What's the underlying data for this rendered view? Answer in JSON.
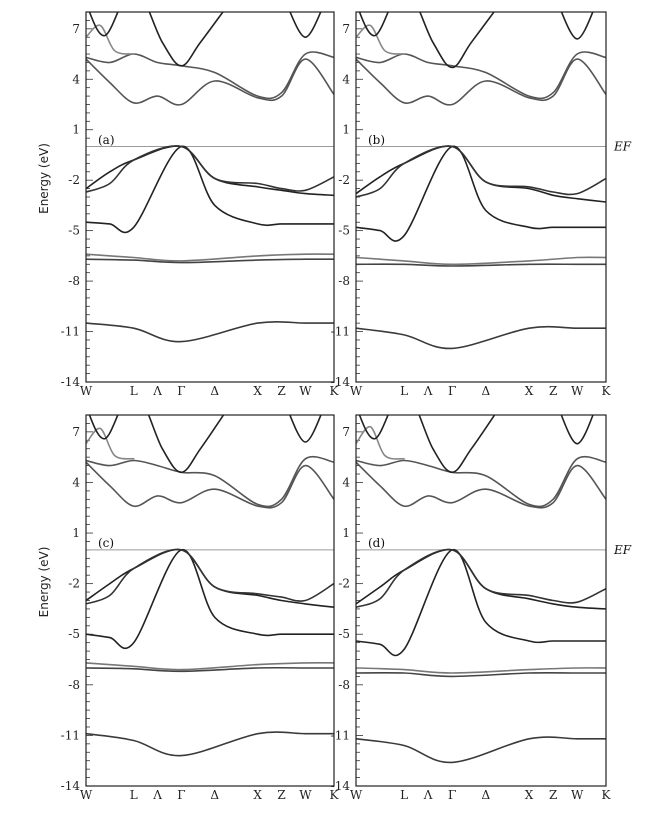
{
  "chart_data": [
    {
      "type": "line",
      "panel_label": "(a)",
      "ylabel": "Energy (eV)",
      "ylim": [
        -14,
        8
      ],
      "yticks": [
        7,
        4,
        1,
        -2,
        -5,
        -8,
        -11,
        -14
      ],
      "xticks": [
        "W",
        "L",
        "Λ",
        "Γ",
        "Δ",
        "X",
        "Z",
        "W",
        "K"
      ],
      "xtick_positions": [
        0,
        1,
        1.5,
        2,
        2.7,
        3.6,
        4.1,
        4.6,
        5.2
      ],
      "fermi_level": 0,
      "fermi_label": "",
      "series": [
        {
          "x": [
            0,
            1,
            2,
            3.6,
            4.6,
            5.2
          ],
          "y": [
            -10.5,
            -10.8,
            -11.6,
            -10.5,
            -10.5,
            -10.5
          ],
          "color": "#3a3a3a"
        },
        {
          "x": [
            0,
            1,
            2,
            3.6,
            4.6,
            5.2
          ],
          "y": [
            -6.7,
            -6.75,
            -6.9,
            -6.75,
            -6.7,
            -6.7
          ],
          "color": "#444444"
        },
        {
          "x": [
            0,
            1,
            2,
            3.6,
            4.6,
            5.2
          ],
          "y": [
            -6.4,
            -6.6,
            -6.8,
            -6.5,
            -6.4,
            -6.4
          ],
          "color": "#777777"
        },
        {
          "x": [
            0,
            0.5,
            1,
            2,
            2.7,
            3.6,
            4.1,
            4.6,
            5.2
          ],
          "y": [
            -4.5,
            -4.6,
            -4.8,
            0,
            -3.5,
            -4.6,
            -4.6,
            -4.6,
            -4.6
          ],
          "color": "#222222"
        },
        {
          "x": [
            0,
            0.5,
            1,
            2,
            2.7,
            3.6,
            4.1,
            4.6,
            5.2
          ],
          "y": [
            -2.5,
            -1.5,
            -0.8,
            0,
            -1.9,
            -2.4,
            -2.6,
            -2.8,
            -2.9
          ],
          "color": "#222222"
        },
        {
          "x": [
            0,
            0.5,
            1,
            2,
            2.7,
            3.6,
            4.1,
            4.6,
            5.2
          ],
          "y": [
            -2.7,
            -2.2,
            -0.8,
            0,
            -1.9,
            -2.2,
            -2.5,
            -2.6,
            -1.8
          ],
          "color": "#333333"
        },
        {
          "x": [
            0,
            0.5,
            1,
            1.5,
            2,
            2.7,
            3.6,
            4.1,
            4.6,
            5.2
          ],
          "y": [
            5.2,
            3.8,
            2.6,
            3.0,
            2.5,
            3.9,
            2.9,
            3.0,
            5.2,
            3.1
          ],
          "color": "#555555"
        },
        {
          "x": [
            0,
            0.5,
            1,
            1.5,
            2,
            2.7,
            3.6,
            4.1,
            4.6,
            5.2
          ],
          "y": [
            5.3,
            5.0,
            5.5,
            5.0,
            4.8,
            4.4,
            3.0,
            3.2,
            5.5,
            5.3
          ],
          "color": "#555555"
        },
        {
          "x": [
            0,
            0.3,
            0.6,
            1
          ],
          "y": [
            6.5,
            7.2,
            5.7,
            5.5
          ],
          "color": "#888888"
        },
        {
          "x": [
            0,
            0.4,
            1,
            1.6,
            2,
            2.4,
            3.0
          ],
          "y": [
            8.5,
            6.6,
            9.5,
            6.2,
            4.8,
            6.2,
            8.5
          ],
          "color": "#222222"
        },
        {
          "x": [
            4.2,
            4.6,
            5.0
          ],
          "y": [
            8.5,
            6.5,
            8.5
          ],
          "color": "#222222"
        }
      ]
    },
    {
      "type": "line",
      "panel_label": "(b)",
      "ylabel": "",
      "ylim": [
        -14,
        8
      ],
      "yticks": [
        7,
        4,
        1,
        -2,
        -5,
        -8,
        -11,
        -14
      ],
      "xticks": [
        "W",
        "L",
        "Λ",
        "Γ",
        "Δ",
        "X",
        "Z",
        "W",
        "K"
      ],
      "xtick_positions": [
        0,
        1,
        1.5,
        2,
        2.7,
        3.6,
        4.1,
        4.6,
        5.2
      ],
      "fermi_level": 0,
      "fermi_label": "EF",
      "series": [
        {
          "x": [
            0,
            1,
            2,
            3.6,
            4.6,
            5.2
          ],
          "y": [
            -10.8,
            -11.2,
            -12.0,
            -10.8,
            -10.8,
            -10.8
          ],
          "color": "#3a3a3a"
        },
        {
          "x": [
            0,
            1,
            2,
            3.6,
            4.6,
            5.2
          ],
          "y": [
            -7.0,
            -7.0,
            -7.1,
            -7.0,
            -7.0,
            -7.0
          ],
          "color": "#444444"
        },
        {
          "x": [
            0,
            1,
            2,
            3.6,
            4.6,
            5.2
          ],
          "y": [
            -6.6,
            -6.8,
            -7.0,
            -6.8,
            -6.6,
            -6.6
          ],
          "color": "#777777"
        },
        {
          "x": [
            0,
            0.5,
            1,
            2,
            2.7,
            3.6,
            4.1,
            4.6,
            5.2
          ],
          "y": [
            -4.8,
            -5.0,
            -5.3,
            0,
            -3.8,
            -4.8,
            -4.8,
            -4.8,
            -4.8
          ],
          "color": "#222222"
        },
        {
          "x": [
            0,
            0.5,
            1,
            2,
            2.7,
            3.6,
            4.1,
            4.6,
            5.2
          ],
          "y": [
            -2.8,
            -1.8,
            -1.0,
            0,
            -2.1,
            -2.5,
            -2.9,
            -3.1,
            -3.3
          ],
          "color": "#222222"
        },
        {
          "x": [
            0,
            0.5,
            1,
            2,
            2.7,
            3.6,
            4.1,
            4.6,
            5.2
          ],
          "y": [
            -3.0,
            -2.5,
            -1.0,
            0,
            -2.1,
            -2.4,
            -2.7,
            -2.8,
            -1.9
          ],
          "color": "#333333"
        },
        {
          "x": [
            0,
            0.5,
            1,
            1.5,
            2,
            2.7,
            3.6,
            4.1,
            4.6,
            5.2
          ],
          "y": [
            5.2,
            3.8,
            2.6,
            3.0,
            2.5,
            3.9,
            2.9,
            3.0,
            5.2,
            3.1
          ],
          "color": "#555555"
        },
        {
          "x": [
            0,
            0.5,
            1,
            1.5,
            2,
            2.7,
            3.6,
            4.1,
            4.6,
            5.2
          ],
          "y": [
            5.3,
            5.0,
            5.5,
            5.0,
            4.8,
            4.4,
            3.0,
            3.2,
            5.5,
            5.3
          ],
          "color": "#555555"
        },
        {
          "x": [
            0,
            0.3,
            0.6,
            1
          ],
          "y": [
            6.5,
            7.2,
            5.7,
            5.5
          ],
          "color": "#888888"
        },
        {
          "x": [
            0,
            0.4,
            1,
            1.6,
            2,
            2.4,
            3.0
          ],
          "y": [
            8.5,
            6.6,
            9.5,
            6.2,
            4.7,
            6.2,
            8.5
          ],
          "color": "#222222"
        },
        {
          "x": [
            4.2,
            4.6,
            5.0
          ],
          "y": [
            8.5,
            6.4,
            8.5
          ],
          "color": "#222222"
        }
      ]
    },
    {
      "type": "line",
      "panel_label": "(c)",
      "ylabel": "Energy (eV)",
      "ylim": [
        -14,
        8
      ],
      "yticks": [
        7,
        4,
        1,
        -2,
        -5,
        -8,
        -11,
        -14
      ],
      "xticks": [
        "W",
        "L",
        "Λ",
        "Γ",
        "Δ",
        "X",
        "Z",
        "W",
        "K"
      ],
      "xtick_positions": [
        0,
        1,
        1.5,
        2,
        2.7,
        3.6,
        4.1,
        4.6,
        5.2
      ],
      "fermi_level": 0,
      "fermi_label": "",
      "series": [
        {
          "x": [
            0,
            1,
            2,
            3.6,
            4.6,
            5.2
          ],
          "y": [
            -10.9,
            -11.3,
            -12.2,
            -10.9,
            -10.9,
            -10.9
          ],
          "color": "#3a3a3a"
        },
        {
          "x": [
            0,
            1,
            2,
            3.6,
            4.6,
            5.2
          ],
          "y": [
            -7.0,
            -7.05,
            -7.2,
            -7.0,
            -7.0,
            -7.0
          ],
          "color": "#444444"
        },
        {
          "x": [
            0,
            1,
            2,
            3.6,
            4.6,
            5.2
          ],
          "y": [
            -6.7,
            -6.9,
            -7.1,
            -6.8,
            -6.7,
            -6.7
          ],
          "color": "#777777"
        },
        {
          "x": [
            0,
            0.5,
            1,
            2,
            2.7,
            3.6,
            4.1,
            4.6,
            5.2
          ],
          "y": [
            -5.0,
            -5.2,
            -5.5,
            0,
            -4.0,
            -5.0,
            -5.0,
            -5.0,
            -5.0
          ],
          "color": "#222222"
        },
        {
          "x": [
            0,
            0.5,
            1,
            2,
            2.7,
            3.6,
            4.1,
            4.6,
            5.2
          ],
          "y": [
            -3.0,
            -2.0,
            -1.1,
            0,
            -2.2,
            -2.7,
            -3.0,
            -3.2,
            -3.4
          ],
          "color": "#222222"
        },
        {
          "x": [
            0,
            0.5,
            1,
            2,
            2.7,
            3.6,
            4.1,
            4.6,
            5.2
          ],
          "y": [
            -3.2,
            -2.7,
            -1.1,
            0,
            -2.2,
            -2.6,
            -2.8,
            -3.0,
            -2.0
          ],
          "color": "#333333"
        },
        {
          "x": [
            0,
            0.5,
            1,
            1.5,
            2,
            2.7,
            3.6,
            4.1,
            4.6,
            5.2
          ],
          "y": [
            5.2,
            3.8,
            2.6,
            3.2,
            2.8,
            3.6,
            2.6,
            2.8,
            5.0,
            3.0
          ],
          "color": "#555555"
        },
        {
          "x": [
            0,
            0.5,
            1,
            1.5,
            2,
            2.7,
            3.6,
            4.1,
            4.6,
            5.2
          ],
          "y": [
            5.3,
            5.0,
            5.3,
            5.0,
            4.6,
            4.4,
            2.7,
            3.0,
            5.4,
            5.2
          ],
          "color": "#555555"
        },
        {
          "x": [
            0,
            0.3,
            0.6,
            1
          ],
          "y": [
            6.3,
            7.2,
            5.6,
            5.4
          ],
          "color": "#888888"
        },
        {
          "x": [
            0,
            0.4,
            1,
            1.6,
            2,
            2.4,
            3.0
          ],
          "y": [
            8.5,
            6.6,
            9.5,
            6.0,
            4.6,
            6.0,
            8.5
          ],
          "color": "#222222"
        },
        {
          "x": [
            4.2,
            4.6,
            5.0
          ],
          "y": [
            8.5,
            6.4,
            8.5
          ],
          "color": "#222222"
        }
      ]
    },
    {
      "type": "line",
      "panel_label": "(d)",
      "ylabel": "",
      "ylim": [
        -14,
        8
      ],
      "yticks": [
        7,
        4,
        1,
        -2,
        -5,
        -8,
        -11,
        -14
      ],
      "xticks": [
        "W",
        "L",
        "Λ",
        "Γ",
        "Δ",
        "X",
        "Z",
        "W",
        "K"
      ],
      "xtick_positions": [
        0,
        1,
        1.5,
        2,
        2.7,
        3.6,
        4.1,
        4.6,
        5.2
      ],
      "fermi_level": 0,
      "fermi_label": "EF",
      "series": [
        {
          "x": [
            0,
            1,
            2,
            3.6,
            4.6,
            5.2
          ],
          "y": [
            -11.2,
            -11.6,
            -12.6,
            -11.2,
            -11.2,
            -11.2
          ],
          "color": "#3a3a3a"
        },
        {
          "x": [
            0,
            1,
            2,
            3.6,
            4.6,
            5.2
          ],
          "y": [
            -7.3,
            -7.3,
            -7.5,
            -7.3,
            -7.3,
            -7.3
          ],
          "color": "#444444"
        },
        {
          "x": [
            0,
            1,
            2,
            3.6,
            4.6,
            5.2
          ],
          "y": [
            -7.0,
            -7.1,
            -7.3,
            -7.1,
            -7.0,
            -7.0
          ],
          "color": "#777777"
        },
        {
          "x": [
            0,
            0.5,
            1,
            2,
            2.7,
            3.6,
            4.1,
            4.6,
            5.2
          ],
          "y": [
            -5.4,
            -5.6,
            -5.9,
            0,
            -4.3,
            -5.4,
            -5.4,
            -5.4,
            -5.4
          ],
          "color": "#222222"
        },
        {
          "x": [
            0,
            0.5,
            1,
            2,
            2.7,
            3.6,
            4.1,
            4.6,
            5.2
          ],
          "y": [
            -3.2,
            -2.2,
            -1.2,
            0,
            -2.3,
            -2.9,
            -3.2,
            -3.4,
            -3.5
          ],
          "color": "#222222"
        },
        {
          "x": [
            0,
            0.5,
            1,
            2,
            2.7,
            3.6,
            4.1,
            4.6,
            5.2
          ],
          "y": [
            -3.4,
            -2.9,
            -1.2,
            0,
            -2.3,
            -2.7,
            -3.0,
            -3.1,
            -2.3
          ],
          "color": "#333333"
        },
        {
          "x": [
            0,
            0.5,
            1,
            1.5,
            2,
            2.7,
            3.6,
            4.1,
            4.6,
            5.2
          ],
          "y": [
            5.2,
            3.8,
            2.6,
            3.2,
            2.8,
            3.6,
            2.6,
            2.8,
            5.0,
            3.0
          ],
          "color": "#555555"
        },
        {
          "x": [
            0,
            0.5,
            1,
            1.5,
            2,
            2.7,
            3.6,
            4.1,
            4.6,
            5.2
          ],
          "y": [
            5.3,
            5.0,
            5.3,
            5.0,
            4.6,
            4.4,
            2.7,
            3.0,
            5.4,
            5.2
          ],
          "color": "#555555"
        },
        {
          "x": [
            0,
            0.3,
            0.6,
            1
          ],
          "y": [
            6.3,
            7.3,
            5.6,
            5.4
          ],
          "color": "#888888"
        },
        {
          "x": [
            0,
            0.4,
            1,
            1.6,
            2,
            2.4,
            3.0
          ],
          "y": [
            8.5,
            6.6,
            9.5,
            6.0,
            4.6,
            6.0,
            8.5
          ],
          "color": "#222222"
        },
        {
          "x": [
            4.2,
            4.6,
            5.0
          ],
          "y": [
            8.5,
            6.3,
            8.5
          ],
          "color": "#222222"
        }
      ]
    }
  ]
}
